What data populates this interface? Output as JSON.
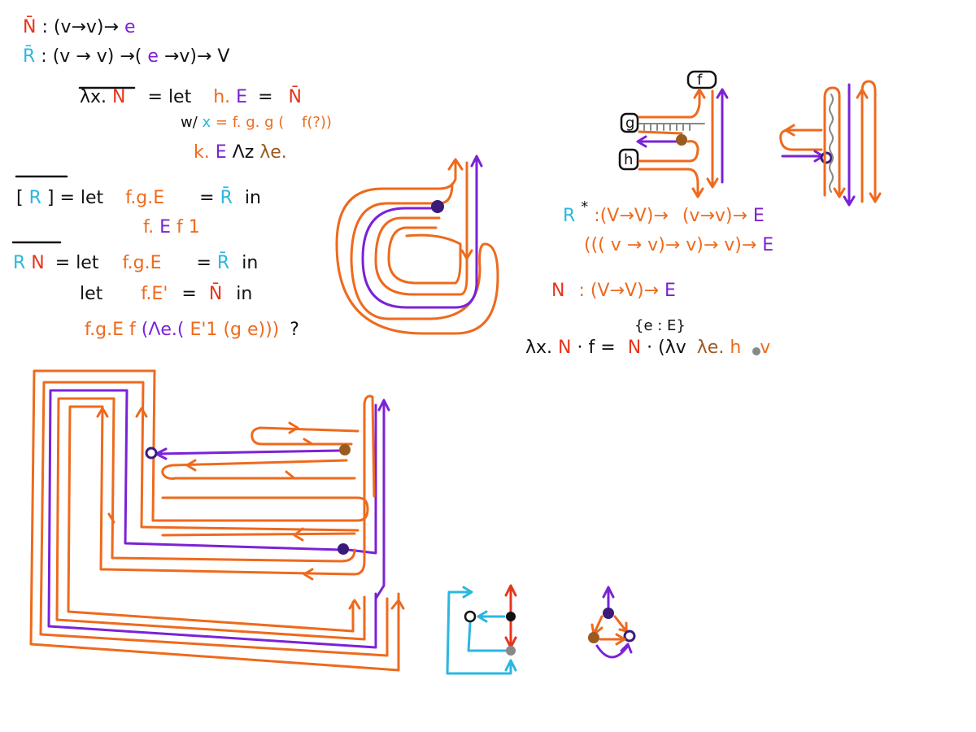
{
  "formulas": {
    "n_bar": {
      "sym": "N̄",
      "rest": ": (v→v)→",
      "e": "e"
    },
    "r_bar": {
      "sym": "R̄",
      "rest": ": (v → v) →(",
      "e": "e",
      "rest2": "→v)→ V"
    },
    "lam_line": {
      "lam": "λx.",
      "n": "N",
      "eq": "= let",
      "h": "h.",
      "E": "E",
      "eq2": "=",
      "nbar": "N̄"
    },
    "w_line": {
      "w": "w/",
      "x": "x",
      "rest": "= f. g. g (",
      "f": "f(?))"
    },
    "k_line": {
      "k": "k.",
      "E": "E",
      "rest": "Λz",
      "lam": "λe."
    },
    "rbr_line": {
      "open": "[",
      "R": "R",
      "close": "] = let",
      "fg": "f.g.E",
      "eq": "=",
      "rbar": "R̄",
      "in": "in"
    },
    "fef_line": {
      "f": "f.",
      "E": "E",
      "rest": "f 1"
    },
    "rn_line": {
      "R": "R",
      "N": "N",
      "eq": "= let",
      "fg": "f.g.E",
      "eq2": "=",
      "rbar": "R̄",
      "in": "in"
    },
    "let_line": {
      "let": "let",
      "fe": "f.E'",
      "eq": "=",
      "nbar": "N̄",
      "in": "in"
    },
    "fgef_line": {
      "fg": "f.g.E f",
      "lam": "(Λe.(",
      "e1": "E'1",
      "ge": "(g e)))",
      "q": "?"
    },
    "rstar_line": {
      "R": "R",
      "star": "*",
      "rest": ":(V→V)→",
      "vv": "(v→v)→",
      "E": "E"
    },
    "llll_line": {
      "text": "((( v → v)→ v)→ v)→",
      "E": "E"
    },
    "n_line": {
      "N": "N",
      "rest": ": (V→V)→",
      "E": "E"
    },
    "eE_line": {
      "text": "{e : E}"
    },
    "lamxn_line": {
      "lam": "λx.",
      "N": "N",
      "dot": "· f =",
      "N2": "N",
      "rest": "· (λv",
      "lam2": "λe.",
      "h": "h",
      "v": "v"
    }
  },
  "labels": {
    "f_box": "f",
    "g_box": "g",
    "h_box": "h"
  },
  "colors": {
    "orange": "#ee6a1d",
    "purple": "#7b22d6",
    "red": "#e8341c",
    "cyan": "#2bb7e0",
    "brown": "#9a5a20",
    "navy": "#3b1a7a"
  }
}
